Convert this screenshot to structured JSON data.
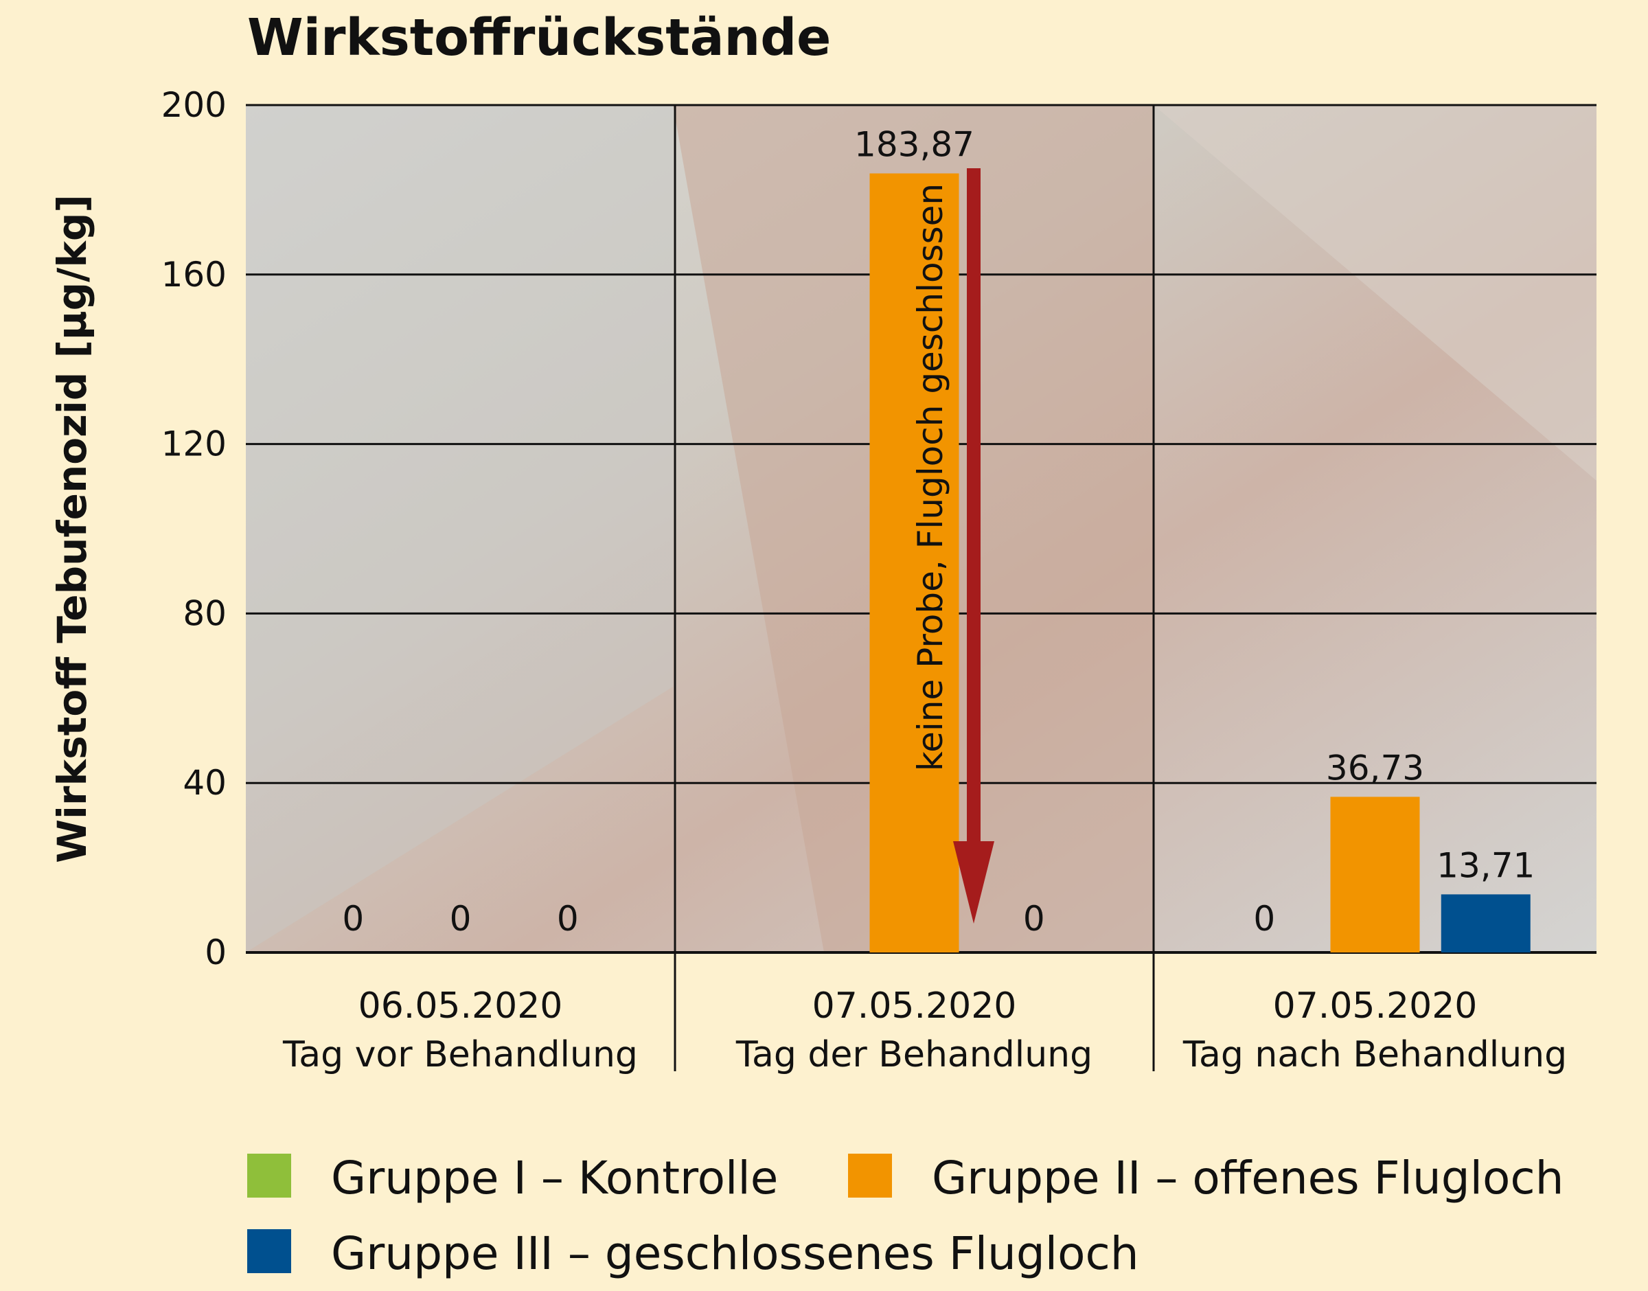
{
  "chart_data": {
    "type": "bar",
    "title": "Wirkstoffrückstände",
    "ylabel": "Wirkstoff Tebufenozid [µg/kg]",
    "ylim": [
      0,
      200
    ],
    "yticks": [
      0,
      40,
      80,
      120,
      160,
      200
    ],
    "grid": true,
    "categories": [
      {
        "date": "06.05.2020",
        "label": "Tag vor Behandlung"
      },
      {
        "date": "07.05.2020",
        "label": "Tag der Behandlung"
      },
      {
        "date": "07.05.2020",
        "label": "Tag nach Behandlung"
      }
    ],
    "series": [
      {
        "name": "Gruppe I – Kontrolle",
        "color": "#8fbf3a",
        "values": [
          0,
          null,
          0
        ],
        "labels": [
          "0",
          "",
          "0"
        ]
      },
      {
        "name": "Gruppe II – offenes Flugloch",
        "color": "#f29400",
        "values": [
          0,
          183.87,
          36.73
        ],
        "labels": [
          "0",
          "183,87",
          "36,73"
        ]
      },
      {
        "name": "Gruppe III – geschlossenes Flugloch",
        "color": "#00508f",
        "values": [
          0,
          0,
          13.71
        ],
        "labels": [
          "0",
          "0",
          "13,71"
        ]
      }
    ],
    "annotation": {
      "text": "keine Probe, Flugloch geschlossen",
      "color": "#a51c1c"
    },
    "legend_position": "bottom"
  }
}
